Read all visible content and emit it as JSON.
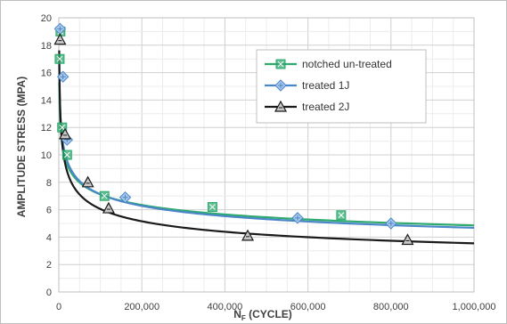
{
  "chart_data": {
    "type": "scatter",
    "title": "",
    "xlabel": "N",
    "xlabel_sub": "F",
    "xlabel_suffix": " (CYCLE)",
    "ylabel": "AMPLITUDE STRESS (MPA)",
    "xlim": [
      0,
      1000000
    ],
    "ylim": [
      0,
      20
    ],
    "x_ticks": [
      0,
      200000,
      400000,
      600000,
      800000,
      1000000
    ],
    "x_tick_labels": [
      "0",
      "200,000",
      "400,000",
      "600,000",
      "800,000",
      "1,000,000"
    ],
    "y_ticks": [
      0,
      2,
      4,
      6,
      8,
      10,
      12,
      14,
      16,
      18,
      20
    ],
    "y_tick_labels": [
      "0",
      "2",
      "4",
      "6",
      "8",
      "10",
      "12",
      "14",
      "16",
      "18",
      "20"
    ],
    "grid": true,
    "legend_position": "top-right",
    "trendline": "power",
    "series": [
      {
        "name": "notched un-treated",
        "color": "#2eaa6e",
        "marker": "square",
        "points": [
          {
            "x": 2000,
            "y": 17
          },
          {
            "x": 4000,
            "y": 19
          },
          {
            "x": 8000,
            "y": 12
          },
          {
            "x": 20000,
            "y": 10
          },
          {
            "x": 110000,
            "y": 7
          },
          {
            "x": 370000,
            "y": 6.2
          },
          {
            "x": 680000,
            "y": 5.6
          }
        ],
        "fit": {
          "a": 48.12,
          "b": -0.166
        }
      },
      {
        "name": "treated 1J",
        "color": "#4a86c8",
        "marker": "diamond",
        "points": [
          {
            "x": 3000,
            "y": 19.2
          },
          {
            "x": 10000,
            "y": 15.7
          },
          {
            "x": 20000,
            "y": 11.1
          },
          {
            "x": 160000,
            "y": 6.9
          },
          {
            "x": 575000,
            "y": 5.4
          },
          {
            "x": 800000,
            "y": 5.0
          }
        ],
        "fit": {
          "a": 58.62,
          "b": -0.183
        }
      },
      {
        "name": "treated 2J",
        "color": "#1a1a1a",
        "marker": "triangle",
        "points": [
          {
            "x": 3000,
            "y": 18.4
          },
          {
            "x": 15000,
            "y": 11.5
          },
          {
            "x": 70000,
            "y": 8.0
          },
          {
            "x": 120000,
            "y": 6.1
          },
          {
            "x": 455000,
            "y": 4.1
          },
          {
            "x": 840000,
            "y": 3.8
          }
        ],
        "fit": {
          "a": 87.51,
          "b": -0.232
        }
      }
    ]
  }
}
